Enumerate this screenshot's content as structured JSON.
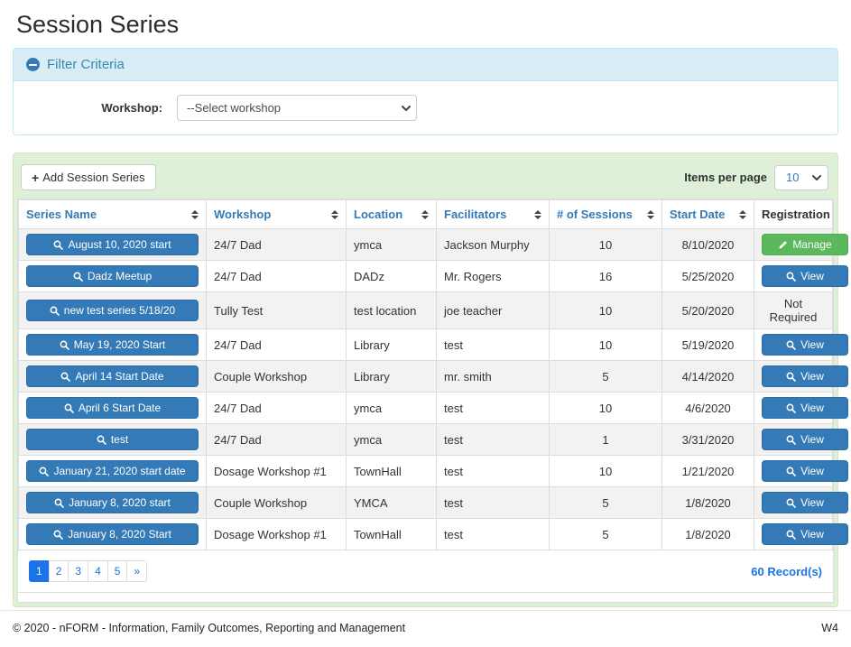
{
  "page": {
    "title": "Session Series"
  },
  "filter": {
    "heading": "Filter Criteria",
    "workshop_label": "Workshop:",
    "workshop_selected": "--Select workshop"
  },
  "toolbar": {
    "add_button_label": "Add Session Series",
    "items_per_page_label": "Items per page",
    "items_per_page_value": "10"
  },
  "table": {
    "columns": [
      {
        "label": "Series Name",
        "sortable": true
      },
      {
        "label": "Workshop",
        "sortable": true
      },
      {
        "label": "Location",
        "sortable": true
      },
      {
        "label": "Facilitators",
        "sortable": true
      },
      {
        "label": "# of Sessions",
        "sortable": true
      },
      {
        "label": "Start Date",
        "sortable": true
      },
      {
        "label": "Registration",
        "sortable": false
      }
    ],
    "rows": [
      {
        "series_name": "August 10, 2020 start",
        "workshop": "24/7 Dad",
        "location": "ymca",
        "facilitators": "Jackson Murphy",
        "sessions": "10",
        "start_date": "8/10/2020",
        "registration": {
          "type": "manage",
          "label": "Manage"
        }
      },
      {
        "series_name": "Dadz Meetup",
        "workshop": "24/7 Dad",
        "location": "DADz",
        "facilitators": "Mr. Rogers",
        "sessions": "16",
        "start_date": "5/25/2020",
        "registration": {
          "type": "view",
          "label": "View"
        }
      },
      {
        "series_name": "new test series 5/18/20",
        "workshop": "Tully Test",
        "location": "test location",
        "facilitators": "joe teacher",
        "sessions": "10",
        "start_date": "5/20/2020",
        "registration": {
          "type": "text",
          "label": "Not Required"
        }
      },
      {
        "series_name": "May 19, 2020 Start",
        "workshop": "24/7 Dad",
        "location": "Library",
        "facilitators": "test",
        "sessions": "10",
        "start_date": "5/19/2020",
        "registration": {
          "type": "view",
          "label": "View"
        }
      },
      {
        "series_name": "April 14 Start Date",
        "workshop": "Couple Workshop",
        "location": "Library",
        "facilitators": "mr. smith",
        "sessions": "5",
        "start_date": "4/14/2020",
        "registration": {
          "type": "view",
          "label": "View"
        }
      },
      {
        "series_name": "April 6 Start Date",
        "workshop": "24/7 Dad",
        "location": "ymca",
        "facilitators": "test",
        "sessions": "10",
        "start_date": "4/6/2020",
        "registration": {
          "type": "view",
          "label": "View"
        }
      },
      {
        "series_name": "test",
        "workshop": "24/7 Dad",
        "location": "ymca",
        "facilitators": "test",
        "sessions": "1",
        "start_date": "3/31/2020",
        "registration": {
          "type": "view",
          "label": "View"
        }
      },
      {
        "series_name": "January 21, 2020 start date",
        "workshop": "Dosage Workshop #1",
        "location": "TownHall",
        "facilitators": "test",
        "sessions": "10",
        "start_date": "1/21/2020",
        "registration": {
          "type": "view",
          "label": "View"
        }
      },
      {
        "series_name": "January 8, 2020 start",
        "workshop": "Couple Workshop",
        "location": "YMCA",
        "facilitators": "test",
        "sessions": "5",
        "start_date": "1/8/2020",
        "registration": {
          "type": "view",
          "label": "View"
        }
      },
      {
        "series_name": "January 8, 2020 Start",
        "workshop": "Dosage Workshop #1",
        "location": "TownHall",
        "facilitators": "test",
        "sessions": "5",
        "start_date": "1/8/2020",
        "registration": {
          "type": "view",
          "label": "View"
        }
      }
    ]
  },
  "pagination": {
    "pages": [
      "1",
      "2",
      "3",
      "4",
      "5",
      "»"
    ],
    "active_page": "1",
    "records_label": "60 Record(s)"
  },
  "footer": {
    "copyright": "© 2020 - nFORM - Information, Family Outcomes, Reporting and Management",
    "environment": "W4"
  },
  "colors": {
    "primary_blue": "#337ab7",
    "primary_blue_border": "#2e6da4",
    "success_green": "#5cb85c",
    "success_green_border": "#4cae4c",
    "filter_bg": "#d9edf7",
    "filter_border": "#bce8f1",
    "filter_text": "#3a87ad",
    "panel_green_bg": "#dff0d8",
    "pagination_blue": "#1a73e8",
    "stripe_gray": "#f2f2f2",
    "table_border": "#ddd"
  }
}
